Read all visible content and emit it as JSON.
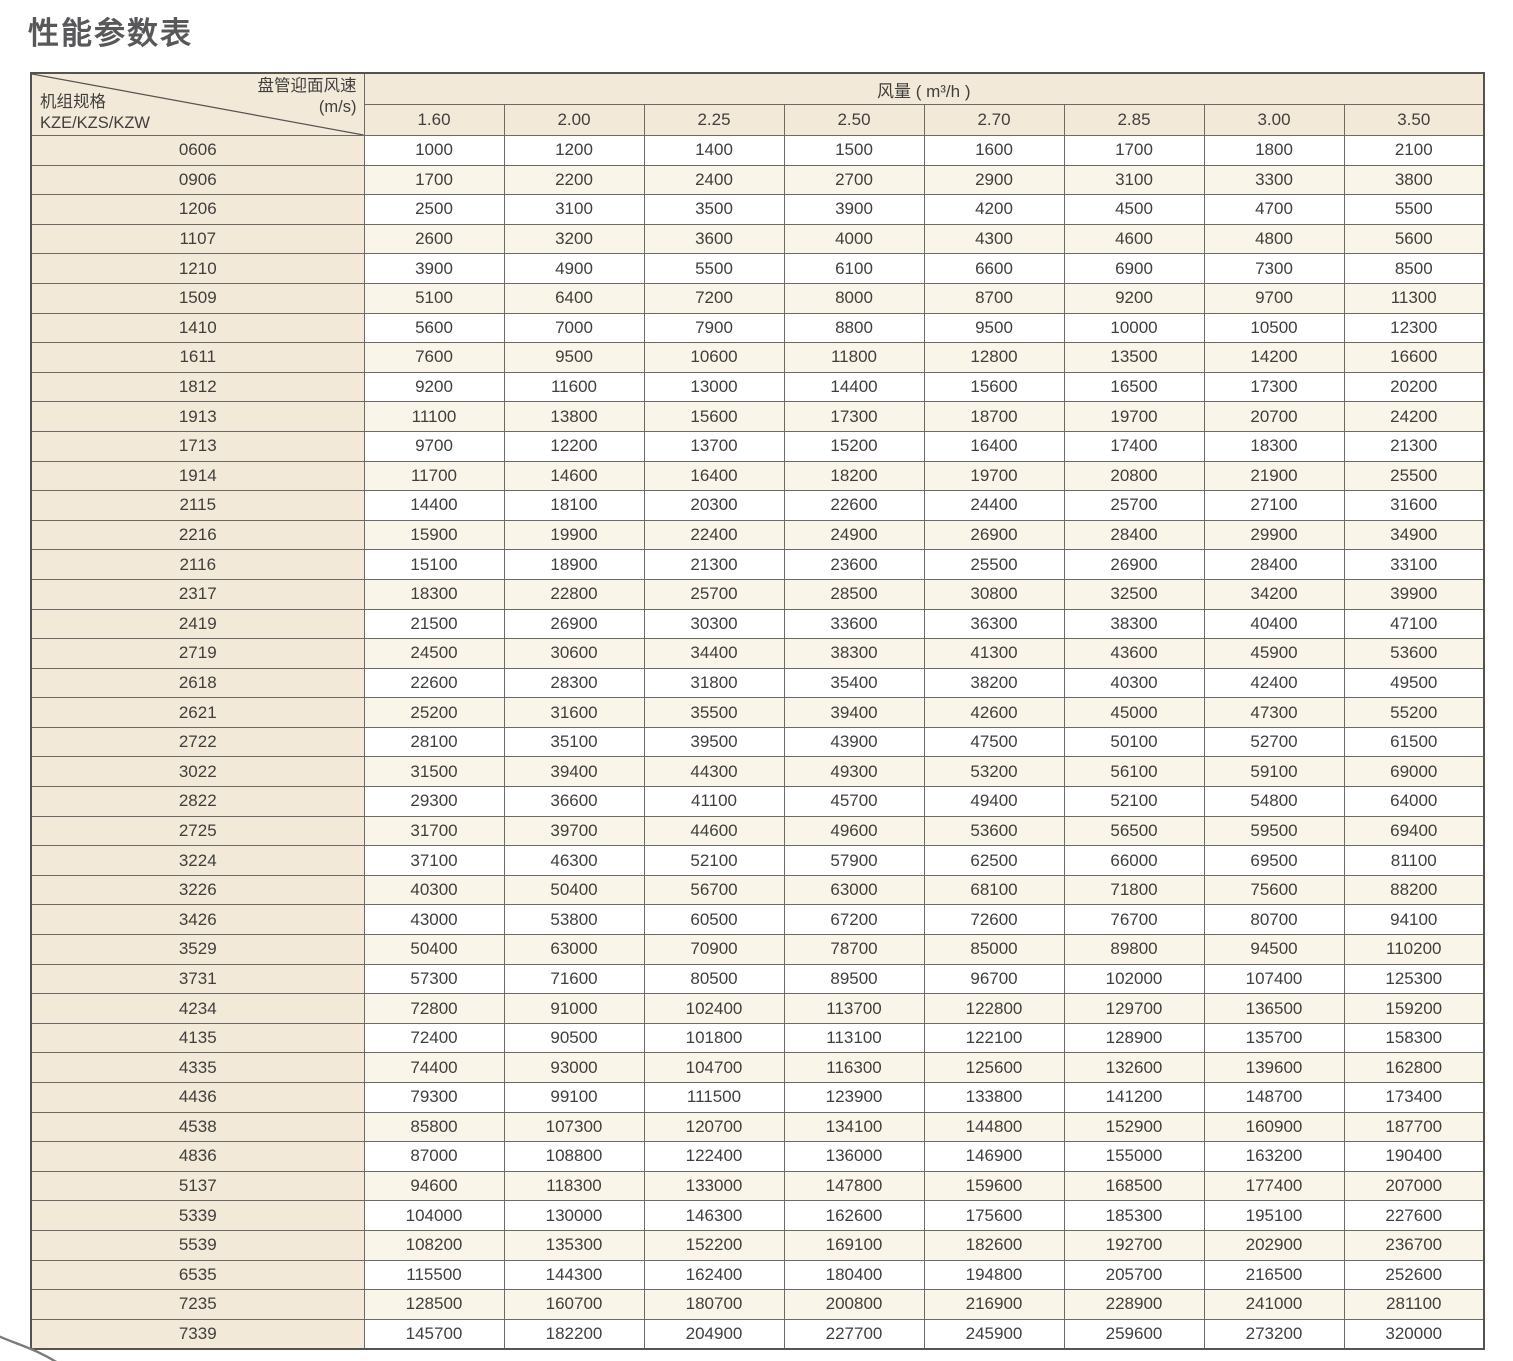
{
  "page_title": "性能参数表",
  "table": {
    "corner": {
      "top_label": "盘管迎面风速",
      "top_unit": "(m/s)",
      "bottom_label_line1": "机组规格",
      "bottom_label_line2": "KZE/KZS/KZW"
    },
    "airflow_header": "风量 ( m³/h )",
    "columns": [
      "1.60",
      "2.00",
      "2.25",
      "2.50",
      "2.70",
      "2.85",
      "3.00",
      "3.50"
    ],
    "rows": [
      {
        "model": "0606",
        "values": [
          1000,
          1200,
          1400,
          1500,
          1600,
          1700,
          1800,
          2100
        ]
      },
      {
        "model": "0906",
        "values": [
          1700,
          2200,
          2400,
          2700,
          2900,
          3100,
          3300,
          3800
        ]
      },
      {
        "model": "1206",
        "values": [
          2500,
          3100,
          3500,
          3900,
          4200,
          4500,
          4700,
          5500
        ]
      },
      {
        "model": "1107",
        "values": [
          2600,
          3200,
          3600,
          4000,
          4300,
          4600,
          4800,
          5600
        ]
      },
      {
        "model": "1210",
        "values": [
          3900,
          4900,
          5500,
          6100,
          6600,
          6900,
          7300,
          8500
        ]
      },
      {
        "model": "1509",
        "values": [
          5100,
          6400,
          7200,
          8000,
          8700,
          9200,
          9700,
          11300
        ]
      },
      {
        "model": "1410",
        "values": [
          5600,
          7000,
          7900,
          8800,
          9500,
          10000,
          10500,
          12300
        ]
      },
      {
        "model": "1611",
        "values": [
          7600,
          9500,
          10600,
          11800,
          12800,
          13500,
          14200,
          16600
        ]
      },
      {
        "model": "1812",
        "values": [
          9200,
          11600,
          13000,
          14400,
          15600,
          16500,
          17300,
          20200
        ]
      },
      {
        "model": "1913",
        "values": [
          11100,
          13800,
          15600,
          17300,
          18700,
          19700,
          20700,
          24200
        ]
      },
      {
        "model": "1713",
        "values": [
          9700,
          12200,
          13700,
          15200,
          16400,
          17400,
          18300,
          21300
        ]
      },
      {
        "model": "1914",
        "values": [
          11700,
          14600,
          16400,
          18200,
          19700,
          20800,
          21900,
          25500
        ]
      },
      {
        "model": "2115",
        "values": [
          14400,
          18100,
          20300,
          22600,
          24400,
          25700,
          27100,
          31600
        ]
      },
      {
        "model": "2216",
        "values": [
          15900,
          19900,
          22400,
          24900,
          26900,
          28400,
          29900,
          34900
        ]
      },
      {
        "model": "2116",
        "values": [
          15100,
          18900,
          21300,
          23600,
          25500,
          26900,
          28400,
          33100
        ]
      },
      {
        "model": "2317",
        "values": [
          18300,
          22800,
          25700,
          28500,
          30800,
          32500,
          34200,
          39900
        ]
      },
      {
        "model": "2419",
        "values": [
          21500,
          26900,
          30300,
          33600,
          36300,
          38300,
          40400,
          47100
        ]
      },
      {
        "model": "2719",
        "values": [
          24500,
          30600,
          34400,
          38300,
          41300,
          43600,
          45900,
          53600
        ]
      },
      {
        "model": "2618",
        "values": [
          22600,
          28300,
          31800,
          35400,
          38200,
          40300,
          42400,
          49500
        ]
      },
      {
        "model": "2621",
        "values": [
          25200,
          31600,
          35500,
          39400,
          42600,
          45000,
          47300,
          55200
        ]
      },
      {
        "model": "2722",
        "values": [
          28100,
          35100,
          39500,
          43900,
          47500,
          50100,
          52700,
          61500
        ]
      },
      {
        "model": "3022",
        "values": [
          31500,
          39400,
          44300,
          49300,
          53200,
          56100,
          59100,
          69000
        ]
      },
      {
        "model": "2822",
        "values": [
          29300,
          36600,
          41100,
          45700,
          49400,
          52100,
          54800,
          64000
        ]
      },
      {
        "model": "2725",
        "values": [
          31700,
          39700,
          44600,
          49600,
          53600,
          56500,
          59500,
          69400
        ]
      },
      {
        "model": "3224",
        "values": [
          37100,
          46300,
          52100,
          57900,
          62500,
          66000,
          69500,
          81100
        ]
      },
      {
        "model": "3226",
        "values": [
          40300,
          50400,
          56700,
          63000,
          68100,
          71800,
          75600,
          88200
        ]
      },
      {
        "model": "3426",
        "values": [
          43000,
          53800,
          60500,
          67200,
          72600,
          76700,
          80700,
          94100
        ]
      },
      {
        "model": "3529",
        "values": [
          50400,
          63000,
          70900,
          78700,
          85000,
          89800,
          94500,
          110200
        ]
      },
      {
        "model": "3731",
        "values": [
          57300,
          71600,
          80500,
          89500,
          96700,
          102000,
          107400,
          125300
        ]
      },
      {
        "model": "4234",
        "values": [
          72800,
          91000,
          102400,
          113700,
          122800,
          129700,
          136500,
          159200
        ]
      },
      {
        "model": "4135",
        "values": [
          72400,
          90500,
          101800,
          113100,
          122100,
          128900,
          135700,
          158300
        ]
      },
      {
        "model": "4335",
        "values": [
          74400,
          93000,
          104700,
          116300,
          125600,
          132600,
          139600,
          162800
        ]
      },
      {
        "model": "4436",
        "values": [
          79300,
          99100,
          111500,
          123900,
          133800,
          141200,
          148700,
          173400
        ]
      },
      {
        "model": "4538",
        "values": [
          85800,
          107300,
          120700,
          134100,
          144800,
          152900,
          160900,
          187700
        ]
      },
      {
        "model": "4836",
        "values": [
          87000,
          108800,
          122400,
          136000,
          146900,
          155000,
          163200,
          190400
        ]
      },
      {
        "model": "5137",
        "values": [
          94600,
          118300,
          133000,
          147800,
          159600,
          168500,
          177400,
          207000
        ]
      },
      {
        "model": "5339",
        "values": [
          104000,
          130000,
          146300,
          162600,
          175600,
          185300,
          195100,
          227600
        ]
      },
      {
        "model": "5539",
        "values": [
          108200,
          135300,
          152200,
          169100,
          182600,
          192700,
          202900,
          236700
        ]
      },
      {
        "model": "6535",
        "values": [
          115500,
          144300,
          162400,
          180400,
          194800,
          205700,
          216500,
          252600
        ]
      },
      {
        "model": "7235",
        "values": [
          128500,
          160700,
          180700,
          200800,
          216900,
          228900,
          241000,
          281100
        ]
      },
      {
        "model": "7339",
        "values": [
          145700,
          182200,
          204900,
          227700,
          245900,
          259600,
          273200,
          320000
        ]
      }
    ]
  },
  "colors": {
    "header_beige": "#f2e9d8",
    "stripe_cream": "#faf5e9",
    "border_gray": "#6b6a64",
    "outer_border": "#54534e",
    "title_gray": "#58585a",
    "text_gray": "#403f3d"
  }
}
